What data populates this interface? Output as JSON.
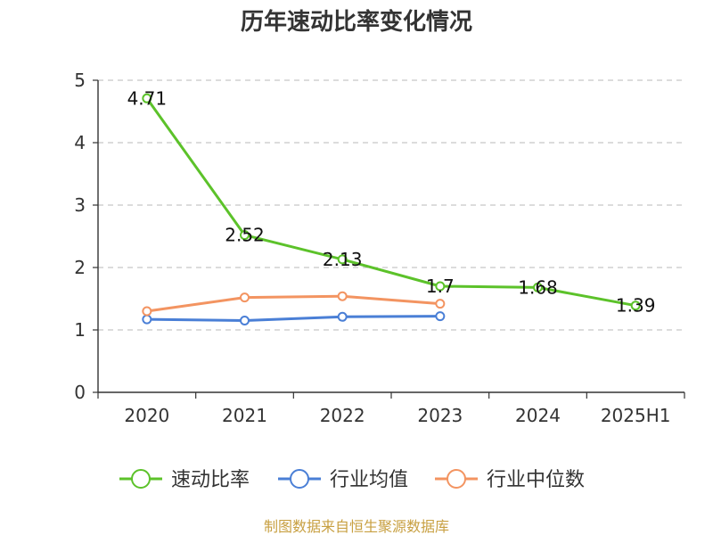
{
  "chart_data": {
    "type": "line",
    "title": "历年速动比率变化情况",
    "categories": [
      "2020",
      "2021",
      "2022",
      "2023",
      "2024",
      "2025H1"
    ],
    "ylim": [
      0,
      5
    ],
    "yticks": [
      "0",
      "1",
      "2",
      "3",
      "4",
      "5"
    ],
    "grid": true,
    "legend_position": "bottom",
    "series": [
      {
        "name": "速动比率",
        "color": "#5cc22a",
        "values": [
          4.71,
          2.52,
          2.13,
          1.7,
          1.68,
          1.39
        ],
        "labels": [
          "4.71",
          "2.52",
          "2.13",
          "1.7",
          "1.68",
          "1.39"
        ]
      },
      {
        "name": "行业均值",
        "color": "#4a7fd6",
        "values": [
          1.17,
          1.15,
          1.21,
          1.22,
          null,
          null
        ]
      },
      {
        "name": "行业中位数",
        "color": "#f39461",
        "values": [
          1.3,
          1.52,
          1.54,
          1.42,
          null,
          null
        ]
      }
    ]
  },
  "footer": {
    "source": "制图数据来自恒生聚源数据库"
  }
}
